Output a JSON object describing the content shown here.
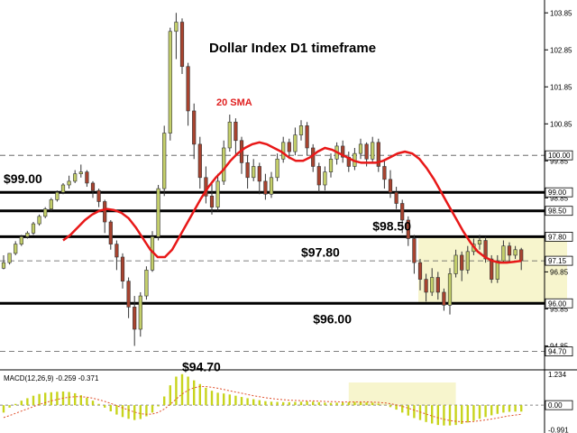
{
  "chart_data": {
    "type": "candlestick",
    "title": "Dollar Index D1 timeframe",
    "indicator_label": "20 SMA",
    "price_axis": {
      "range": [
        94.3,
        104.1
      ],
      "ticks": [
        "103.85",
        "102.85",
        "101.85",
        "100.85",
        "99.85",
        "98.85",
        "97.85",
        "96.85",
        "95.85",
        "94.85"
      ]
    },
    "highlight_tags": [
      {
        "text": "100.00",
        "value": 100.0
      },
      {
        "text": "99.00",
        "value": 99.0
      },
      {
        "text": "98.50",
        "value": 98.5
      },
      {
        "text": "97.80",
        "value": 97.8
      },
      {
        "text": "97.15",
        "value": 97.15
      },
      {
        "text": "96.00",
        "value": 96.0
      },
      {
        "text": "94.70",
        "value": 94.7
      }
    ],
    "levels": [
      {
        "value": 100.0,
        "style": "dashed"
      },
      {
        "value": 99.0,
        "style": "solid"
      },
      {
        "value": 98.5,
        "style": "solid"
      },
      {
        "value": 97.8,
        "style": "solid"
      },
      {
        "value": 97.15,
        "style": "dashed"
      },
      {
        "value": 96.0,
        "style": "solid"
      },
      {
        "value": 94.7,
        "style": "dashed"
      }
    ],
    "level_labels": [
      {
        "text": "$99.00",
        "value": 99.0,
        "at": 0
      },
      {
        "text": "$98.50",
        "value": 98.5,
        "at": 62
      },
      {
        "text": "$97.80",
        "value": 97.8,
        "at": 50
      },
      {
        "text": "$96.00",
        "value": 96.0,
        "at": 52
      },
      {
        "text": "$94.70",
        "value": 94.7,
        "at": 30
      }
    ],
    "consolidation_zone": {
      "from_index": 70,
      "to_index": 95,
      "high": 97.8,
      "low": 96.0
    },
    "candles": [
      [
        96.95,
        97.1,
        97.3,
        96.92
      ],
      [
        97.1,
        97.35,
        97.35,
        97.05
      ],
      [
        97.35,
        97.6,
        97.68,
        97.3
      ],
      [
        97.6,
        97.8,
        97.85,
        97.55
      ],
      [
        97.8,
        97.9,
        97.95,
        97.75
      ],
      [
        97.9,
        98.15,
        98.2,
        97.85
      ],
      [
        98.15,
        98.35,
        98.4,
        98.1
      ],
      [
        98.35,
        98.55,
        98.6,
        98.3
      ],
      [
        98.55,
        98.8,
        98.85,
        98.5
      ],
      [
        98.8,
        99.0,
        99.05,
        98.75
      ],
      [
        99.0,
        99.2,
        99.25,
        98.95
      ],
      [
        99.2,
        99.3,
        99.45,
        99.1
      ],
      [
        99.3,
        99.5,
        99.6,
        99.25
      ],
      [
        99.5,
        99.55,
        99.75,
        99.4
      ],
      [
        99.55,
        99.25,
        99.6,
        99.15
      ],
      [
        99.25,
        99.05,
        99.3,
        98.85
      ],
      [
        99.05,
        98.75,
        99.1,
        98.6
      ],
      [
        98.75,
        98.2,
        98.8,
        97.9
      ],
      [
        98.2,
        97.6,
        98.25,
        97.45
      ],
      [
        97.6,
        97.25,
        97.7,
        96.9
      ],
      [
        97.25,
        96.6,
        97.35,
        96.4
      ],
      [
        96.6,
        95.9,
        96.7,
        95.6
      ],
      [
        95.9,
        95.3,
        96.2,
        94.85
      ],
      [
        95.3,
        96.2,
        96.3,
        95.1
      ],
      [
        96.2,
        96.9,
        97.0,
        96.1
      ],
      [
        96.9,
        97.8,
        97.95,
        96.85
      ],
      [
        97.8,
        99.1,
        99.2,
        97.7
      ],
      [
        99.1,
        100.6,
        100.8,
        98.9
      ],
      [
        100.6,
        103.35,
        103.45,
        100.4
      ],
      [
        103.35,
        103.6,
        103.85,
        102.6
      ],
      [
        103.6,
        102.4,
        103.7,
        102.2
      ],
      [
        102.4,
        101.2,
        102.5,
        100.8
      ],
      [
        101.2,
        100.3,
        101.4,
        99.9
      ],
      [
        100.3,
        99.4,
        100.5,
        99.1
      ],
      [
        99.4,
        98.9,
        99.7,
        98.7
      ],
      [
        98.9,
        98.6,
        99.3,
        98.4
      ],
      [
        98.6,
        99.3,
        99.5,
        98.5
      ],
      [
        99.3,
        100.2,
        100.4,
        99.2
      ],
      [
        100.2,
        100.9,
        101.1,
        100.1
      ],
      [
        100.9,
        100.4,
        101.0,
        100.0
      ],
      [
        100.4,
        99.8,
        100.5,
        99.5
      ],
      [
        99.8,
        99.4,
        100.0,
        99.1
      ],
      [
        99.4,
        99.7,
        99.9,
        99.3
      ],
      [
        99.7,
        99.3,
        99.8,
        98.95
      ],
      [
        99.3,
        98.95,
        99.5,
        98.8
      ],
      [
        98.95,
        99.4,
        99.55,
        98.85
      ],
      [
        99.4,
        99.9,
        100.05,
        99.3
      ],
      [
        99.9,
        100.35,
        100.5,
        99.8
      ],
      [
        100.35,
        100.1,
        100.45,
        99.9
      ],
      [
        100.1,
        100.55,
        100.75,
        100.0
      ],
      [
        100.55,
        100.8,
        100.95,
        100.4
      ],
      [
        100.8,
        100.2,
        100.9,
        100.0
      ],
      [
        100.2,
        99.7,
        100.3,
        99.55
      ],
      [
        99.7,
        99.2,
        99.8,
        99.0
      ],
      [
        99.2,
        99.55,
        99.7,
        99.05
      ],
      [
        99.55,
        99.9,
        100.05,
        99.4
      ],
      [
        99.9,
        100.25,
        100.35,
        99.75
      ],
      [
        100.25,
        99.95,
        100.4,
        99.8
      ],
      [
        99.95,
        99.7,
        100.1,
        99.55
      ],
      [
        99.7,
        100.05,
        100.2,
        99.6
      ],
      [
        100.05,
        100.3,
        100.45,
        99.9
      ],
      [
        100.3,
        99.9,
        100.35,
        99.7
      ],
      [
        99.9,
        100.35,
        100.5,
        99.8
      ],
      [
        100.35,
        99.7,
        100.45,
        99.55
      ],
      [
        99.7,
        99.35,
        99.85,
        99.1
      ],
      [
        99.35,
        99.0,
        99.6,
        98.85
      ],
      [
        99.0,
        98.7,
        99.15,
        98.55
      ],
      [
        98.7,
        98.25,
        98.8,
        97.9
      ],
      [
        98.25,
        97.75,
        98.35,
        97.55
      ],
      [
        97.75,
        97.1,
        97.85,
        96.8
      ],
      [
        97.1,
        96.65,
        97.2,
        96.35
      ],
      [
        96.65,
        96.3,
        96.8,
        96.05
      ],
      [
        96.3,
        96.7,
        96.95,
        96.2
      ],
      [
        96.7,
        96.3,
        96.85,
        96.1
      ],
      [
        96.3,
        95.95,
        96.4,
        95.8
      ],
      [
        95.95,
        96.8,
        96.95,
        95.7
      ],
      [
        96.8,
        97.3,
        97.45,
        96.7
      ],
      [
        97.3,
        96.9,
        97.4,
        96.6
      ],
      [
        96.9,
        97.4,
        97.55,
        96.8
      ],
      [
        97.4,
        97.6,
        97.75,
        97.3
      ],
      [
        97.6,
        97.7,
        97.85,
        97.45
      ],
      [
        97.7,
        97.2,
        97.8,
        97.1
      ],
      [
        97.2,
        96.65,
        97.3,
        96.55
      ],
      [
        96.65,
        97.15,
        97.3,
        96.55
      ],
      [
        97.15,
        97.55,
        97.7,
        97.1
      ],
      [
        97.55,
        97.3,
        97.65,
        97.15
      ],
      [
        97.3,
        97.45,
        97.55,
        97.2
      ],
      [
        97.45,
        97.15,
        97.5,
        96.9
      ]
    ],
    "sma20": [
      97.7,
      97.85,
      98.05,
      98.25,
      98.4,
      98.5,
      98.55,
      98.52,
      98.45,
      98.3,
      98.05,
      97.75,
      97.45,
      97.25,
      97.25,
      97.45,
      97.8,
      98.15,
      98.5,
      98.85,
      99.15,
      99.4,
      99.6,
      99.85,
      100.05,
      100.2,
      100.3,
      100.35,
      100.3,
      100.2,
      100.1,
      99.95,
      99.85,
      99.85,
      99.95,
      100.1,
      100.2,
      100.15,
      100.05,
      99.95,
      99.85,
      99.8,
      99.8,
      99.8,
      99.85,
      99.95,
      100.05,
      100.1,
      100.05,
      99.9,
      99.65,
      99.35,
      99.0,
      98.65,
      98.3,
      97.95,
      97.65,
      97.4,
      97.25,
      97.15,
      97.1,
      97.1,
      97.12,
      97.15
    ],
    "sma_start_index": 10,
    "macd": {
      "label": "MACD(12,26,9) -0.259 -0.371",
      "range": [
        -1.05,
        1.35
      ],
      "ticks": [
        {
          "text": "1.234",
          "value": 1.234
        },
        {
          "text": "0.00",
          "value": 0.0
        },
        {
          "text": "-0.991",
          "value": -0.991
        }
      ],
      "histogram": [
        -0.3,
        -0.1,
        0.05,
        0.18,
        0.28,
        0.38,
        0.45,
        0.5,
        0.52,
        0.54,
        0.55,
        0.53,
        0.48,
        0.4,
        0.3,
        0.18,
        0.05,
        -0.1,
        -0.25,
        -0.38,
        -0.48,
        -0.55,
        -0.6,
        -0.56,
        -0.45,
        -0.3,
        -0.05,
        0.35,
        0.8,
        1.15,
        1.25,
        1.15,
        1.0,
        0.85,
        0.7,
        0.58,
        0.5,
        0.47,
        0.43,
        0.38,
        0.33,
        0.28,
        0.24,
        0.2,
        0.16,
        0.14,
        0.13,
        0.12,
        0.12,
        0.13,
        0.14,
        0.15,
        0.14,
        0.12,
        0.1,
        0.09,
        0.1,
        0.11,
        0.12,
        0.13,
        0.12,
        0.11,
        0.1,
        0.06,
        0.01,
        -0.08,
        -0.18,
        -0.3,
        -0.42,
        -0.52,
        -0.6,
        -0.68,
        -0.74,
        -0.8,
        -0.82,
        -0.82,
        -0.8,
        -0.76,
        -0.7,
        -0.63,
        -0.55,
        -0.48,
        -0.41,
        -0.35,
        -0.3,
        -0.27,
        -0.26,
        -0.26
      ],
      "signal": [
        -0.5,
        -0.42,
        -0.33,
        -0.24,
        -0.15,
        -0.06,
        0.03,
        0.1,
        0.17,
        0.23,
        0.28,
        0.32,
        0.34,
        0.34,
        0.32,
        0.28,
        0.22,
        0.15,
        0.07,
        -0.02,
        -0.11,
        -0.2,
        -0.28,
        -0.34,
        -0.37,
        -0.36,
        -0.29,
        -0.16,
        0.03,
        0.25,
        0.45,
        0.6,
        0.7,
        0.75,
        0.75,
        0.72,
        0.68,
        0.63,
        0.58,
        0.53,
        0.48,
        0.43,
        0.38,
        0.34,
        0.3,
        0.27,
        0.24,
        0.22,
        0.2,
        0.19,
        0.18,
        0.17,
        0.17,
        0.16,
        0.15,
        0.14,
        0.14,
        0.13,
        0.13,
        0.13,
        0.13,
        0.13,
        0.12,
        0.11,
        0.09,
        0.06,
        0.01,
        -0.05,
        -0.12,
        -0.2,
        -0.28,
        -0.36,
        -0.44,
        -0.51,
        -0.57,
        -0.62,
        -0.65,
        -0.67,
        -0.67,
        -0.66,
        -0.63,
        -0.6,
        -0.56,
        -0.52,
        -0.47,
        -0.43,
        -0.4,
        -0.37
      ],
      "highlight_zone": {
        "from_index": 58,
        "to_index": 76
      }
    },
    "colors": {
      "bull_candle": "#c4cf6a",
      "bear_candle": "#a8432f",
      "sma": "#e81818",
      "level_line": "#000000",
      "zone_fill": "#f7f5cd",
      "macd_hist": "#c8d41d",
      "macd_signal": "#e0502c"
    }
  }
}
